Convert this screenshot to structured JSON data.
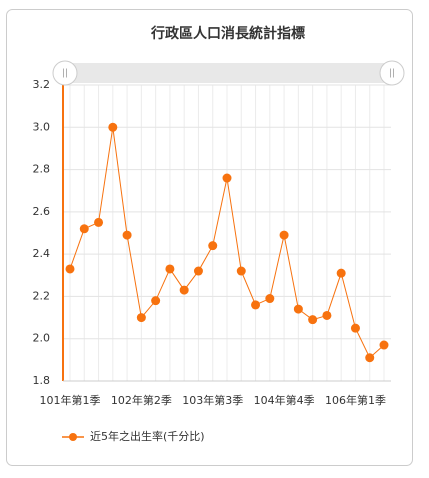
{
  "chart_data": {
    "type": "line",
    "title": "行政區人口消長統計指標",
    "categories": [
      "101年第1季",
      null,
      null,
      null,
      null,
      "102年第2季",
      null,
      null,
      null,
      null,
      "103年第3季",
      null,
      null,
      null,
      null,
      "104年第4季",
      null,
      null,
      null,
      null,
      "106年第1季",
      null,
      null
    ],
    "series": [
      {
        "name": "近5年之出生率(千分比)",
        "color": "#f7720f",
        "values": [
          2.33,
          2.52,
          2.55,
          3.0,
          2.49,
          2.1,
          2.18,
          2.33,
          2.23,
          2.32,
          2.44,
          2.76,
          2.32,
          2.16,
          2.19,
          2.49,
          2.14,
          2.09,
          2.11,
          2.31,
          2.05,
          1.91,
          1.97
        ]
      }
    ],
    "ylim": [
      1.8,
      3.2
    ],
    "yticks": [
      1.8,
      {
        "value": 2,
        "label": "2.0"
      },
      2.2,
      2.4,
      2.6,
      2.8,
      {
        "value": 3,
        "label": "3.0"
      },
      3.2
    ],
    "grid": true,
    "legend": "bottom-left"
  }
}
